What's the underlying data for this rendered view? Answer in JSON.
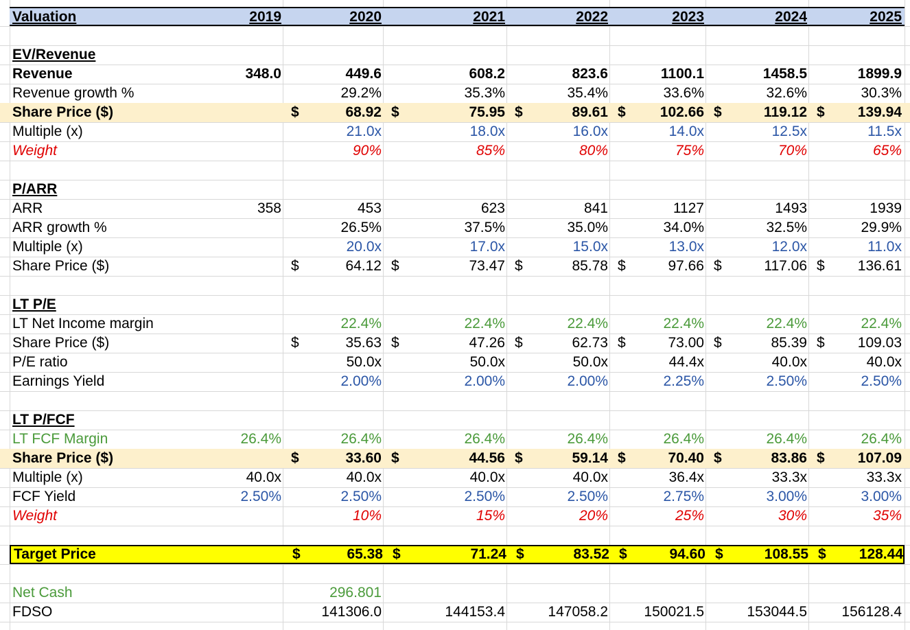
{
  "colors": {
    "header_band": "#c6d5ef",
    "highlight_row": "#fdf0cc",
    "target_row": "#ffff00",
    "input_blue": "#2b56a6",
    "margin_green": "#4a9a3a",
    "weight_red": "#e00000",
    "gridline": "#d8d8d8"
  },
  "header": {
    "title": "Valuation",
    "years": [
      "2019",
      "2020",
      "2021",
      "2022",
      "2023",
      "2024",
      "2025"
    ]
  },
  "ev_revenue": {
    "title": "EV/Revenue",
    "revenue": {
      "label": "Revenue",
      "values": [
        "348.0",
        "449.6",
        "608.2",
        "823.6",
        "1100.1",
        "1458.5",
        "1899.9"
      ]
    },
    "growth": {
      "label": "Revenue growth %",
      "values": [
        "",
        "29.2%",
        "35.3%",
        "35.4%",
        "33.6%",
        "32.6%",
        "30.3%"
      ]
    },
    "share_price": {
      "label": "Share Price ($)",
      "dollars": [
        "",
        "$",
        "$",
        "$",
        "$",
        "$",
        "$"
      ],
      "values": [
        "",
        "68.92",
        "75.95",
        "89.61",
        "102.66",
        "119.12",
        "139.94"
      ]
    },
    "multiple": {
      "label": "Multiple (x)",
      "values": [
        "",
        "21.0x",
        "18.0x",
        "16.0x",
        "14.0x",
        "12.5x",
        "11.5x"
      ]
    },
    "weight": {
      "label": "Weight",
      "values": [
        "",
        "90%",
        "85%",
        "80%",
        "75%",
        "70%",
        "65%"
      ]
    }
  },
  "p_arr": {
    "title": "P/ARR",
    "arr": {
      "label": "ARR",
      "values": [
        "358",
        "453",
        "623",
        "841",
        "1127",
        "1493",
        "1939"
      ]
    },
    "growth": {
      "label": "ARR growth %",
      "values": [
        "",
        "26.5%",
        "37.5%",
        "35.0%",
        "34.0%",
        "32.5%",
        "29.9%"
      ]
    },
    "multiple": {
      "label": "Multiple (x)",
      "values": [
        "",
        "20.0x",
        "17.0x",
        "15.0x",
        "13.0x",
        "12.0x",
        "11.0x"
      ]
    },
    "share_price": {
      "label": "Share Price ($)",
      "dollars": [
        "",
        "$",
        "$",
        "$",
        "$",
        "$",
        "$"
      ],
      "values": [
        "",
        "64.12",
        "73.47",
        "85.78",
        "97.66",
        "117.06",
        "136.61"
      ]
    }
  },
  "lt_pe": {
    "title": "LT P/E",
    "margin": {
      "label": "LT Net Income margin",
      "values": [
        "",
        "22.4%",
        "22.4%",
        "22.4%",
        "22.4%",
        "22.4%",
        "22.4%"
      ]
    },
    "share_price": {
      "label": "Share Price ($)",
      "dollars": [
        "",
        "$",
        "$",
        "$",
        "$",
        "$",
        "$"
      ],
      "values": [
        "",
        "35.63",
        "47.26",
        "62.73",
        "73.00",
        "85.39",
        "109.03"
      ]
    },
    "pe_ratio": {
      "label": "P/E ratio",
      "values": [
        "",
        "50.0x",
        "50.0x",
        "50.0x",
        "44.4x",
        "40.0x",
        "40.0x"
      ]
    },
    "earnings_yield": {
      "label": "Earnings Yield",
      "values": [
        "",
        "2.00%",
        "2.00%",
        "2.00%",
        "2.25%",
        "2.50%",
        "2.50%"
      ]
    }
  },
  "lt_pfcf": {
    "title": "LT P/FCF",
    "margin": {
      "label": "LT FCF Margin",
      "values": [
        "26.4%",
        "26.4%",
        "26.4%",
        "26.4%",
        "26.4%",
        "26.4%",
        "26.4%"
      ]
    },
    "share_price": {
      "label": "Share Price ($)",
      "dollars": [
        "",
        "$",
        "$",
        "$",
        "$",
        "$",
        "$"
      ],
      "values": [
        "",
        "33.60",
        "44.56",
        "59.14",
        "70.40",
        "83.86",
        "107.09"
      ]
    },
    "multiple": {
      "label": "Multiple (x)",
      "values": [
        "40.0x",
        "40.0x",
        "40.0x",
        "40.0x",
        "36.4x",
        "33.3x",
        "33.3x"
      ]
    },
    "fcf_yield": {
      "label": "FCF Yield",
      "values": [
        "2.50%",
        "2.50%",
        "2.50%",
        "2.50%",
        "2.75%",
        "3.00%",
        "3.00%"
      ]
    },
    "weight": {
      "label": "Weight",
      "values": [
        "",
        "10%",
        "15%",
        "20%",
        "25%",
        "30%",
        "35%"
      ]
    }
  },
  "target_price": {
    "label": "Target Price",
    "dollars": [
      "",
      "$",
      "$",
      "$",
      "$",
      "$",
      "$"
    ],
    "values": [
      "",
      "65.38",
      "71.24",
      "83.52",
      "94.60",
      "108.55",
      "128.44"
    ]
  },
  "net_cash": {
    "label": "Net Cash",
    "values": [
      "",
      "296.801",
      "",
      "",
      "",
      "",
      ""
    ]
  },
  "fdso": {
    "label": "FDSO",
    "values": [
      "",
      "141306.0",
      "144153.4",
      "147058.2",
      "150021.5",
      "153044.5",
      "156128.4"
    ]
  }
}
